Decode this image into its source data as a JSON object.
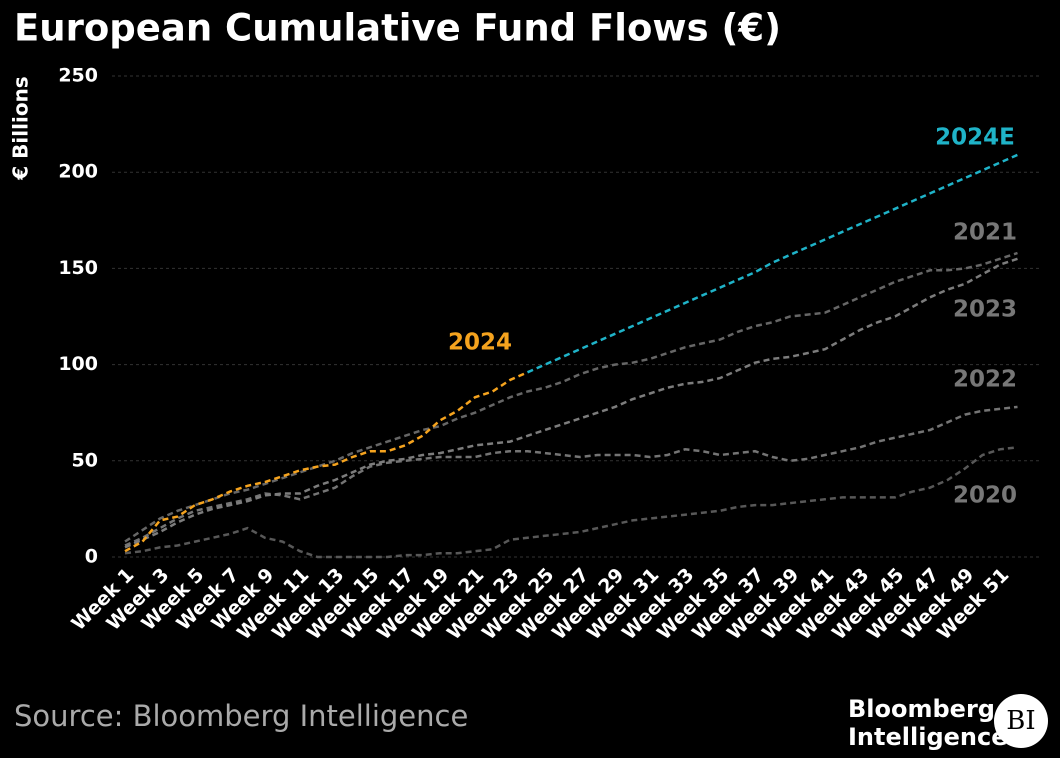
{
  "chart_data": {
    "type": "line",
    "title": "European Cumulative Fund Flows (€)",
    "y_label": "€ Billions",
    "source": "Source: Bloomberg Intelligence",
    "logo_lines": [
      "Bloomberg",
      "Intelligence"
    ],
    "logo_badge": "BI",
    "categories": [
      "Week 1",
      null,
      "Week 3",
      null,
      "Week 5",
      null,
      "Week 7",
      null,
      "Week 9",
      null,
      "Week 11",
      null,
      "Week 13",
      null,
      "Week 15",
      null,
      "Week 17",
      null,
      "Week 19",
      null,
      "Week 21",
      null,
      "Week 23",
      null,
      "Week 25",
      null,
      "Week 27",
      null,
      "Week 29",
      null,
      "Week 31",
      null,
      "Week 33",
      null,
      "Week 35",
      null,
      "Week 37",
      null,
      "Week 39",
      null,
      "Week 41",
      null,
      "Week 43",
      null,
      "Week 45",
      null,
      "Week 47",
      null,
      "Week 49",
      null,
      "Week 51",
      null
    ],
    "ylim": [
      0,
      250
    ],
    "yticks": [
      0,
      50,
      100,
      150,
      200,
      250
    ],
    "grid": true,
    "series": [
      {
        "name": "2020",
        "color": "#585858",
        "values": [
          2,
          3,
          5,
          6,
          8,
          10,
          12,
          15,
          10,
          8,
          3,
          0,
          0,
          0,
          0,
          0,
          1,
          1,
          2,
          2,
          3,
          4,
          9,
          10,
          11,
          12,
          13,
          15,
          17,
          19,
          20,
          21,
          22,
          23,
          24,
          26,
          27,
          27,
          28,
          29,
          30,
          31,
          31,
          31,
          31,
          34,
          36,
          40,
          46,
          53,
          56,
          57
        ]
      },
      {
        "name": "2022",
        "color": "#747474",
        "values": [
          6,
          10,
          15,
          20,
          24,
          26,
          28,
          30,
          33,
          32,
          30,
          33,
          36,
          42,
          47,
          49,
          50,
          51,
          52,
          52,
          52,
          54,
          55,
          55,
          54,
          53,
          52,
          53,
          53,
          53,
          52,
          53,
          56,
          55,
          53,
          54,
          55,
          52,
          50,
          51,
          53,
          55,
          57,
          60,
          62,
          64,
          66,
          70,
          74,
          76,
          77,
          78
        ]
      },
      {
        "name": "2023",
        "color": "#7c7c7c",
        "values": [
          5,
          9,
          13,
          18,
          22,
          25,
          27,
          29,
          32,
          33,
          33,
          37,
          40,
          44,
          48,
          50,
          51,
          53,
          54,
          56,
          58,
          59,
          60,
          63,
          66,
          69,
          72,
          75,
          78,
          82,
          85,
          88,
          90,
          91,
          93,
          97,
          101,
          103,
          104,
          106,
          108,
          113,
          118,
          122,
          125,
          130,
          135,
          139,
          142,
          147,
          152,
          155
        ]
      },
      {
        "name": "2021",
        "color": "#666666",
        "values": [
          8,
          14,
          20,
          24,
          27,
          30,
          33,
          35,
          38,
          41,
          44,
          47,
          50,
          54,
          57,
          60,
          63,
          66,
          68,
          72,
          75,
          79,
          83,
          86,
          88,
          91,
          95,
          98,
          100,
          101,
          103,
          106,
          109,
          111,
          113,
          117,
          120,
          122,
          125,
          126,
          127,
          131,
          135,
          139,
          143,
          146,
          149,
          149,
          150,
          152,
          155,
          158
        ]
      },
      {
        "name": "2024E",
        "color": "#1fb3c8",
        "values": [
          null,
          null,
          null,
          null,
          null,
          null,
          null,
          null,
          null,
          null,
          null,
          null,
          null,
          null,
          null,
          null,
          null,
          null,
          null,
          null,
          null,
          null,
          null,
          96,
          100,
          104,
          108,
          112,
          116,
          120,
          124,
          128,
          132,
          136,
          140,
          144,
          148,
          153,
          157,
          161,
          165,
          169,
          173,
          177,
          181,
          185,
          189,
          193,
          197,
          201,
          205,
          209
        ]
      },
      {
        "name": "2024",
        "color": "#f5a31e",
        "values": [
          3,
          8,
          19,
          21,
          27,
          30,
          34,
          37,
          39,
          42,
          45,
          47,
          48,
          52,
          55,
          55,
          58,
          63,
          71,
          76,
          83,
          86,
          92,
          96,
          null,
          null,
          null,
          null,
          null,
          null,
          null,
          null,
          null,
          null,
          null,
          null,
          null,
          null,
          null,
          null,
          null,
          null,
          null,
          null,
          null,
          null,
          null,
          null,
          null,
          null,
          null,
          null
        ]
      }
    ]
  }
}
